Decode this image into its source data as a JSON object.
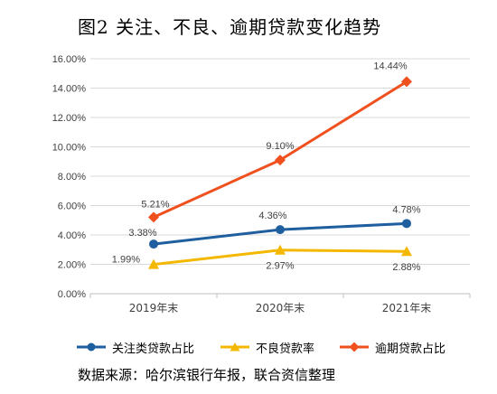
{
  "title": "图2    关注、不良、逾期贷款变化趋势",
  "source": "数据来源：哈尔滨银行年报，联合资信整理",
  "chart_data": {
    "type": "line",
    "categories": [
      "2019年末",
      "2020年末",
      "2021年末"
    ],
    "series": [
      {
        "name": "关注类贷款占比",
        "values": [
          3.38,
          4.36,
          4.78
        ],
        "labels": [
          "3.38%",
          "4.36%",
          "4.78%"
        ],
        "color": "#1f5f9f",
        "marker": "circle"
      },
      {
        "name": "不良贷款率",
        "values": [
          1.99,
          2.97,
          2.88
        ],
        "labels": [
          "1.99%",
          "2.97%",
          "2.88%"
        ],
        "color": "#f5b800",
        "marker": "triangle"
      },
      {
        "name": "逾期贷款占比",
        "values": [
          5.21,
          9.1,
          14.44
        ],
        "labels": [
          "5.21%",
          "9.10%",
          "14.44%"
        ],
        "color": "#f0501e",
        "marker": "diamond"
      }
    ],
    "yticks": [
      "0.00%",
      "2.00%",
      "4.00%",
      "6.00%",
      "8.00%",
      "10.00%",
      "12.00%",
      "14.00%",
      "16.00%"
    ],
    "ylim": [
      0,
      16
    ],
    "grid": true,
    "legend": "bottom"
  }
}
